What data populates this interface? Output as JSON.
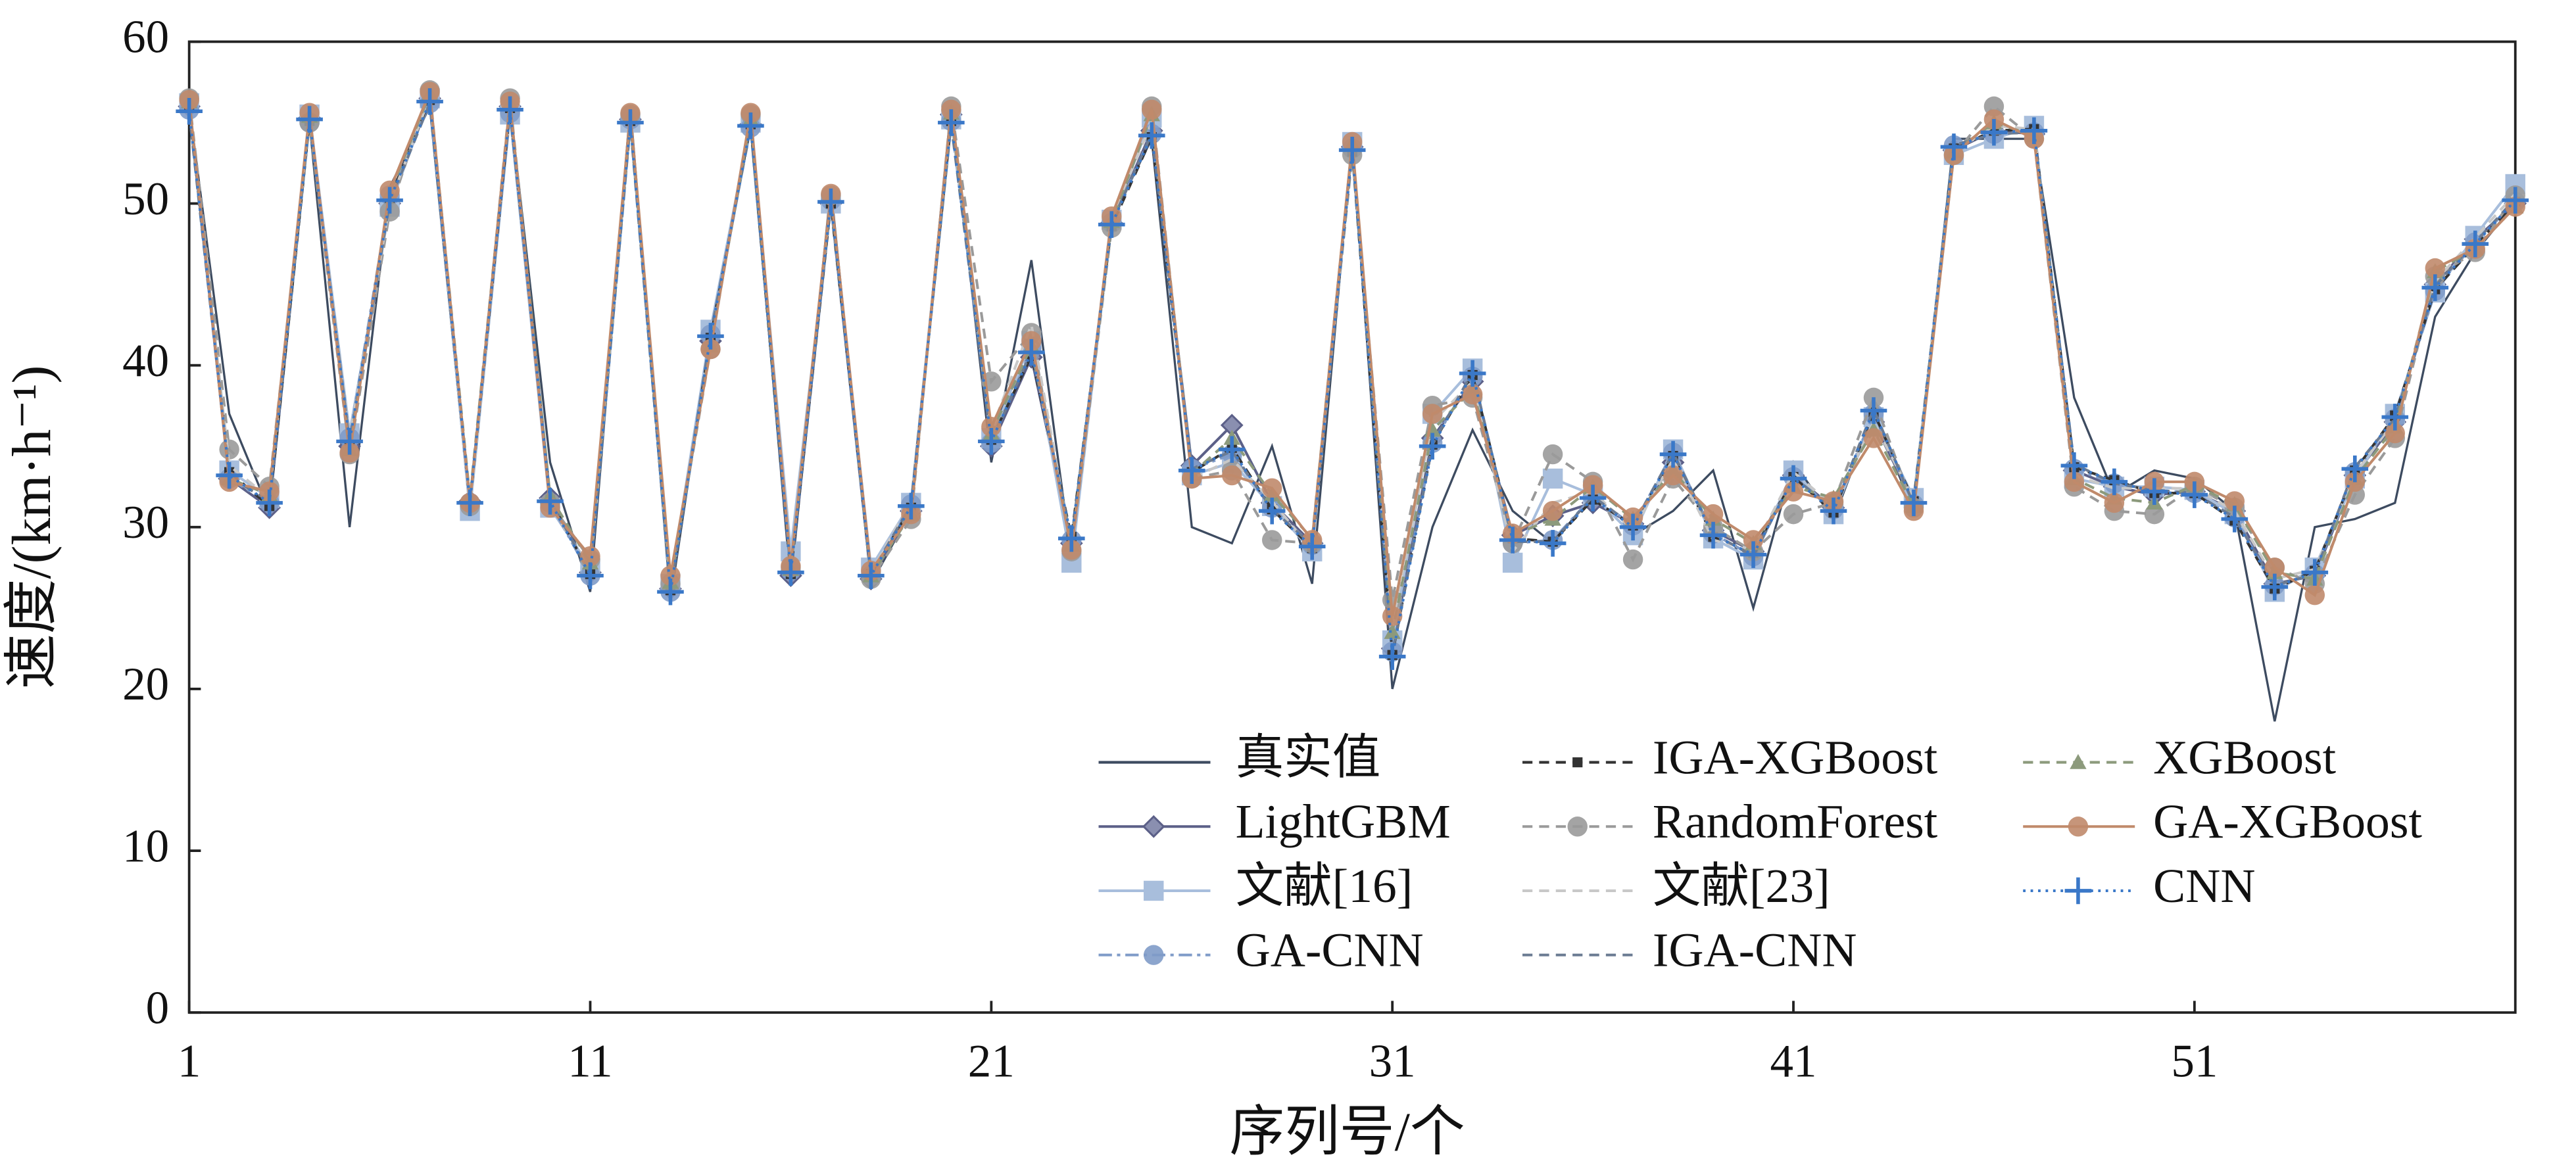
{
  "chart_data": {
    "type": "line",
    "xlabel": "序列号/个",
    "ylabel": "速度/(km·h⁻¹)",
    "x": [
      1,
      2,
      3,
      4,
      5,
      6,
      7,
      8,
      9,
      10,
      11,
      12,
      13,
      14,
      15,
      16,
      17,
      18,
      19,
      20,
      21,
      22,
      23,
      24,
      25,
      26,
      27,
      28,
      29,
      30,
      31,
      32,
      33,
      34,
      35,
      36,
      37,
      38,
      39,
      40,
      41,
      42,
      43,
      44,
      45,
      46,
      47,
      48,
      49,
      50,
      51,
      52,
      53,
      54,
      55,
      56,
      57,
      58,
      59
    ],
    "xlim": [
      1,
      59
    ],
    "xticks": [
      1,
      11,
      21,
      31,
      41,
      51
    ],
    "ylim": [
      0,
      60
    ],
    "yticks": [
      0,
      10,
      20,
      30,
      40,
      50,
      60
    ],
    "legend": "lower-right",
    "series": [
      {
        "name": "真实值",
        "color": "#3d4b60",
        "dash": "solid",
        "marker": "none",
        "values": [
          56,
          37,
          31,
          55,
          30,
          51,
          56,
          31,
          56,
          34,
          26,
          56,
          25.5,
          42,
          55,
          26.5,
          51,
          26.5,
          31,
          56,
          34,
          46.5,
          28,
          49,
          54,
          30,
          29,
          35,
          26.5,
          54,
          20,
          30,
          36,
          31,
          29,
          32,
          29.5,
          31,
          33.5,
          25,
          34,
          30.5,
          37,
          31,
          54,
          54,
          54,
          38,
          32,
          33.5,
          33,
          31,
          18,
          30,
          30.5,
          31.5,
          43,
          47,
          50
        ]
      },
      {
        "name": "LightGBM",
        "color": "#5c6088",
        "dash": "solid",
        "marker": "diamond",
        "values": [
          56.0,
          33.0,
          31.2,
          55.3,
          35.0,
          50.0,
          56.5,
          31.6,
          56.0,
          31.8,
          27.2,
          55.2,
          26.2,
          41.5,
          54.9,
          27.0,
          50.0,
          26.8,
          31.0,
          55.5,
          35.0,
          40.5,
          29.0,
          48.8,
          54.5,
          33.8,
          36.3,
          31.5,
          29.0,
          53.5,
          22.5,
          35.5,
          39.0,
          29.5,
          30.7,
          31.5,
          30.2,
          34.0,
          29.8,
          28.5,
          33.2,
          31.2,
          36.5,
          31.5,
          53.3,
          54.5,
          54.3,
          33.5,
          32.5,
          32.0,
          32.2,
          31.0,
          26.5,
          27.0,
          33.2,
          36.5,
          45.0,
          47.8,
          50.0
        ]
      },
      {
        "name": "文献[16]",
        "color": "#a8bedc",
        "dash": "solid",
        "marker": "square",
        "values": [
          56.2,
          33.5,
          31.8,
          55.5,
          35.8,
          49.8,
          56.5,
          31.0,
          55.5,
          31.2,
          27.5,
          55.0,
          26.5,
          42.2,
          55.0,
          28.5,
          50.0,
          27.5,
          31.5,
          55.2,
          35.5,
          41.5,
          27.8,
          49.0,
          55.3,
          33.2,
          34.0,
          31.3,
          28.5,
          53.8,
          23.0,
          37.0,
          39.8,
          27.8,
          33.0,
          32.0,
          29.5,
          34.8,
          29.3,
          28.0,
          33.5,
          30.8,
          36.8,
          31.8,
          53.0,
          54.0,
          54.8,
          33.0,
          32.5,
          32.5,
          32.3,
          30.8,
          26.0,
          27.5,
          33.0,
          37.0,
          44.5,
          48.0,
          51.2
        ]
      },
      {
        "name": "GA-CNN",
        "color": "#7f9bc8",
        "dash": "dashdot",
        "marker": "circle",
        "values": [
          55.8,
          33.0,
          31.5,
          55.0,
          35.5,
          50.5,
          56.2,
          31.5,
          55.6,
          31.5,
          27.0,
          55.2,
          26.0,
          41.9,
          54.7,
          27.3,
          50.2,
          27.0,
          31.4,
          55.1,
          35.2,
          41.0,
          29.2,
          48.8,
          54.3,
          33.6,
          34.5,
          31.2,
          28.9,
          53.4,
          22.3,
          35.2,
          39.3,
          29.0,
          29.2,
          31.9,
          30.1,
          34.6,
          29.6,
          28.2,
          33.1,
          31.1,
          37.0,
          31.4,
          53.6,
          54.3,
          54.4,
          33.6,
          32.7,
          32.3,
          32.1,
          30.6,
          26.4,
          27.1,
          33.4,
          36.7,
          44.6,
          47.6,
          50.1
        ]
      },
      {
        "name": "IGA-XGBoost",
        "color": "#333333",
        "dash": "dashed",
        "marker": "smallsquare",
        "values": [
          55.9,
          33.4,
          31.3,
          55.1,
          35.0,
          50.3,
          56.4,
          31.4,
          55.9,
          31.7,
          27.1,
          55.1,
          26.1,
          41.7,
          54.9,
          27.1,
          50.0,
          27.1,
          31.2,
          55.1,
          35.4,
          40.6,
          29.4,
          48.6,
          54.1,
          33.4,
          34.9,
          31.1,
          28.7,
          53.2,
          22.1,
          35.1,
          39.4,
          29.3,
          29.1,
          31.7,
          30.1,
          34.4,
          29.4,
          28.4,
          33.1,
          30.9,
          37.1,
          31.6,
          53.4,
          54.5,
          54.6,
          33.7,
          32.9,
          32.1,
          32.1,
          30.4,
          26.2,
          27.3,
          33.5,
          36.9,
          44.7,
          47.4,
          50.1
        ]
      },
      {
        "name": "RandomForest",
        "color": "#9a9a9a",
        "dash": "dashed",
        "marker": "circle",
        "values": [
          56.5,
          34.8,
          32.5,
          55.0,
          34.5,
          49.5,
          57.0,
          31.3,
          56.5,
          31.5,
          28.0,
          55.5,
          26.5,
          41.0,
          55.5,
          27.5,
          50.5,
          26.8,
          30.5,
          56.0,
          39.0,
          42.0,
          28.5,
          48.5,
          56.0,
          33.0,
          33.5,
          29.2,
          29.0,
          53.0,
          25.5,
          37.5,
          38.0,
          29.0,
          34.5,
          32.8,
          28.0,
          33.0,
          30.0,
          28.5,
          30.8,
          31.5,
          38.0,
          31.2,
          53.0,
          56.0,
          54.0,
          32.5,
          31.0,
          30.8,
          32.5,
          31.2,
          27.5,
          26.5,
          32.0,
          35.5,
          45.5,
          47.0,
          50.5
        ]
      },
      {
        "name": "文献[23]",
        "color": "#c8c8c8",
        "dash": "dashed",
        "marker": "none",
        "values": [
          56.0,
          33.8,
          31.8,
          55.4,
          35.5,
          50.0,
          56.6,
          31.2,
          55.7,
          31.4,
          27.3,
          55.3,
          26.3,
          41.6,
          55.1,
          27.8,
          50.3,
          27.2,
          31.6,
          55.3,
          36.0,
          42.5,
          28.8,
          49.2,
          55.0,
          33.0,
          34.2,
          31.6,
          28.6,
          53.6,
          24.0,
          36.5,
          39.0,
          28.5,
          31.5,
          32.2,
          29.8,
          34.2,
          29.2,
          28.6,
          33.4,
          31.3,
          36.5,
          31.7,
          53.2,
          54.8,
          54.6,
          33.2,
          32.4,
          32.4,
          32.4,
          31.0,
          26.8,
          27.4,
          33.3,
          36.6,
          45.2,
          47.9,
          50.6
        ]
      },
      {
        "name": "IGA-CNN",
        "color": "#6b7b92",
        "dash": "dashed",
        "marker": "none",
        "values": [
          55.6,
          33.1,
          31.6,
          55.3,
          35.2,
          50.1,
          56.2,
          31.6,
          55.7,
          31.7,
          27.1,
          54.9,
          26.1,
          41.9,
          54.7,
          27.3,
          50.2,
          27.1,
          31.4,
          54.9,
          35.2,
          40.9,
          29.2,
          48.8,
          54.3,
          33.6,
          34.7,
          31.1,
          28.9,
          53.4,
          22.2,
          35.1,
          39.6,
          29.1,
          29.1,
          31.9,
          30.1,
          34.6,
          29.6,
          28.2,
          33.1,
          31.1,
          37.3,
          31.4,
          53.6,
          54.3,
          54.4,
          33.9,
          32.7,
          32.3,
          32.1,
          30.6,
          26.4,
          27.1,
          33.7,
          36.7,
          44.9,
          47.6,
          50.3
        ]
      },
      {
        "name": "XGBoost",
        "color": "#8c9a7c",
        "dash": "dashed",
        "marker": "triangle",
        "values": [
          56.3,
          33.0,
          32.0,
          55.4,
          34.8,
          50.6,
          56.8,
          31.8,
          56.2,
          31.9,
          27.8,
          55.4,
          26.6,
          41.2,
          55.2,
          27.4,
          50.4,
          27.0,
          30.8,
          55.6,
          35.8,
          41.2,
          28.9,
          48.9,
          55.5,
          33.3,
          35.5,
          32.0,
          29.3,
          53.7,
          23.5,
          36.0,
          38.5,
          29.5,
          30.5,
          32.5,
          30.5,
          33.5,
          30.5,
          29.0,
          32.5,
          31.8,
          36.0,
          31.3,
          53.2,
          55.0,
          54.2,
          33.0,
          31.8,
          31.5,
          32.6,
          31.4,
          27.2,
          26.8,
          33.0,
          36.2,
          45.8,
          47.2,
          49.8
        ]
      },
      {
        "name": "GA-XGBoost",
        "color": "#c08a6b",
        "dash": "solid",
        "marker": "circle",
        "values": [
          56.4,
          32.8,
          32.2,
          55.6,
          34.6,
          50.8,
          56.9,
          31.5,
          56.3,
          31.2,
          28.2,
          55.6,
          27.0,
          41.0,
          55.6,
          27.6,
          50.6,
          27.3,
          30.8,
          55.8,
          36.2,
          41.5,
          28.6,
          49.2,
          55.8,
          33.0,
          33.2,
          32.4,
          29.2,
          53.8,
          24.5,
          37.0,
          38.2,
          29.6,
          31.0,
          32.6,
          30.6,
          33.2,
          30.8,
          29.2,
          32.2,
          31.6,
          35.5,
          31.0,
          53.0,
          55.2,
          54.0,
          32.8,
          31.5,
          32.8,
          32.8,
          31.6,
          27.5,
          25.8,
          32.8,
          35.8,
          46.0,
          47.2,
          49.8
        ]
      },
      {
        "name": "CNN",
        "color": "#3a78c8",
        "dash": "dotted",
        "marker": "plus",
        "values": [
          55.7,
          33.2,
          31.5,
          55.2,
          35.3,
          50.2,
          56.3,
          31.5,
          55.8,
          31.6,
          27.0,
          55.0,
          26.0,
          41.8,
          54.8,
          27.2,
          50.1,
          27.0,
          31.3,
          55.0,
          35.3,
          40.8,
          29.3,
          48.7,
          54.2,
          33.5,
          34.8,
          31.0,
          28.8,
          53.3,
          22.0,
          35.0,
          39.5,
          29.2,
          29.0,
          31.8,
          30.0,
          34.5,
          29.5,
          28.3,
          33.0,
          31.0,
          37.2,
          31.5,
          53.5,
          54.4,
          54.5,
          33.8,
          32.8,
          32.2,
          32.0,
          30.5,
          26.3,
          27.2,
          33.6,
          36.8,
          44.8,
          47.5,
          50.2
        ]
      }
    ]
  }
}
